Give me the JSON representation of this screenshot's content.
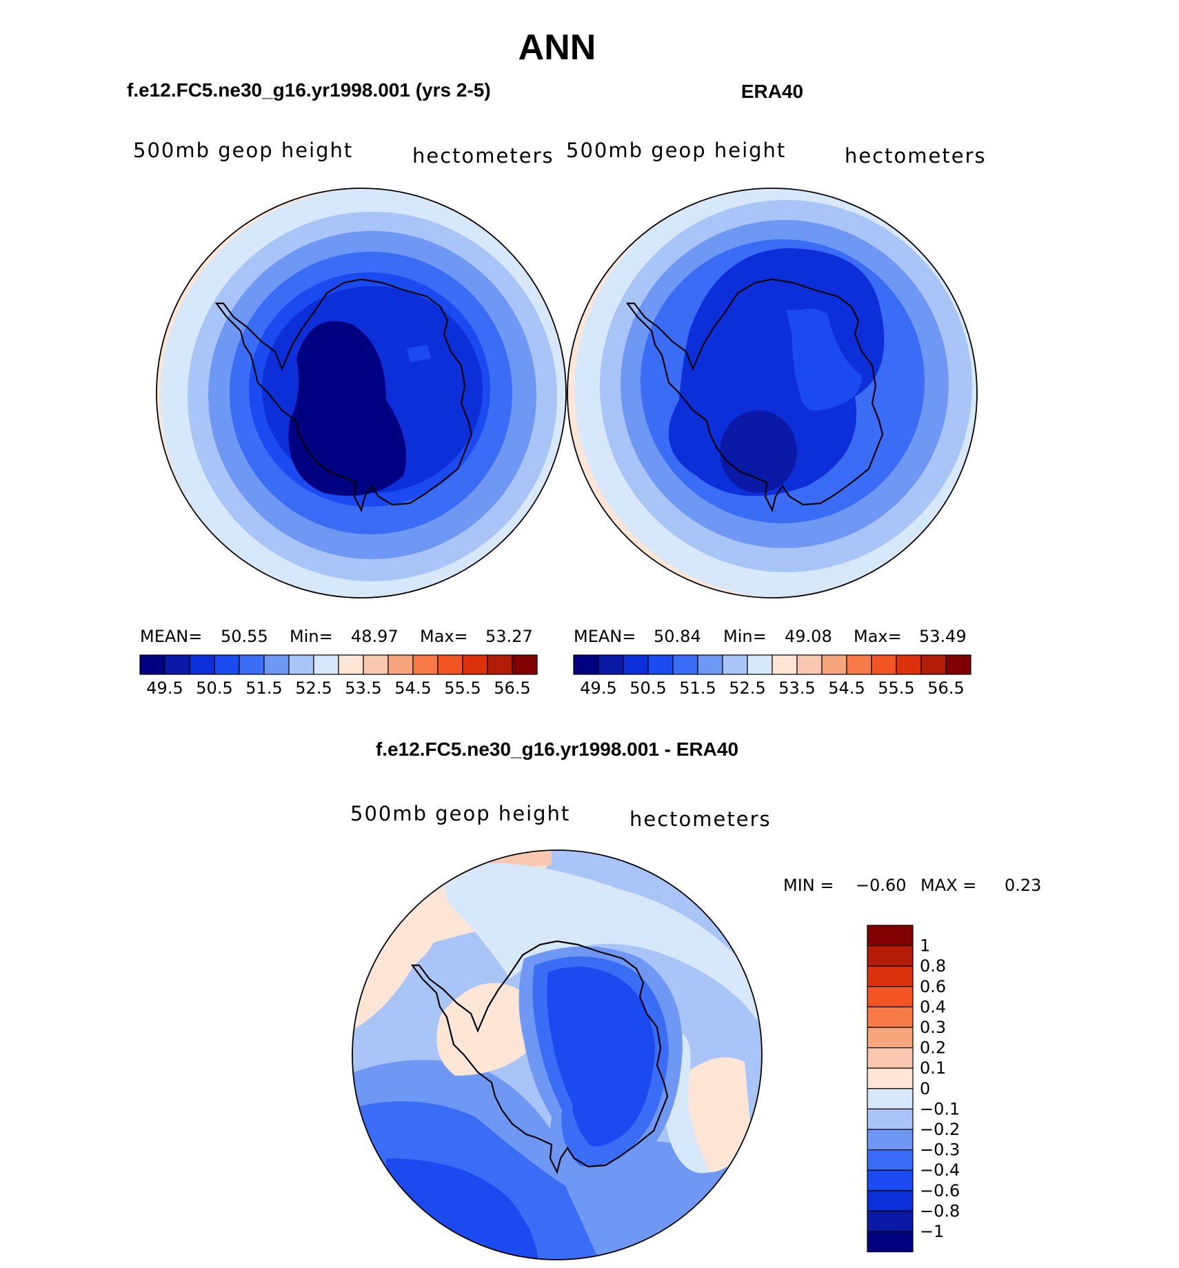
{
  "title": "ANN",
  "colors": {
    "blues": [
      "#000080",
      "#0a1aa6",
      "#0d2fd9",
      "#1a4af0",
      "#3b6cf5",
      "#6f98f5",
      "#a9c4f7",
      "#d8e8fb"
    ],
    "reds": [
      "#fde6d5",
      "#fac8b0",
      "#f7a57d",
      "#f57a47",
      "#f25523",
      "#db310c",
      "#b31c07",
      "#800000"
    ],
    "coast": "#000000"
  },
  "panels": [
    {
      "title": "f.e12.FC5.ne30_g16.yr1998.001 (yrs 2-5)",
      "left_label": "500mb geop height",
      "right_label": "hectometers",
      "stats": {
        "mean_label": "MEAN=",
        "mean": "50.55",
        "min_label": "Min=",
        "min": "48.97",
        "max_label": "Max=",
        "max": "53.27"
      }
    },
    {
      "title": "ERA40",
      "left_label": "500mb geop height",
      "right_label": "hectometers",
      "stats": {
        "mean_label": "MEAN=",
        "mean": "50.84",
        "min_label": "Min=",
        "min": "49.08",
        "max_label": "Max=",
        "max": "53.49"
      }
    }
  ],
  "colorbar_ticks": [
    "49.5",
    "50.5",
    "51.5",
    "52.5",
    "53.5",
    "54.5",
    "55.5",
    "56.5"
  ],
  "diff_panel": {
    "title": "f.e12.FC5.ne30_g16.yr1998.001 - ERA40",
    "left_label": "500mb geop height",
    "right_label": "hectometers",
    "min_label": "MIN =",
    "min": "−0.60",
    "max_label": "MAX =",
    "max": "0.23",
    "colorbar_labels": [
      "1",
      "0.8",
      "0.6",
      "0.4",
      "0.3",
      "0.2",
      "0.1",
      "0",
      "−0.1",
      "−0.2",
      "−0.3",
      "−0.4",
      "−0.6",
      "−0.8",
      "−1"
    ],
    "colorbar_colors": [
      "#800000",
      "#b31c07",
      "#db310c",
      "#f25523",
      "#f57a47",
      "#f7a57d",
      "#fac8b0",
      "#fde6d5",
      "#d8e8fb",
      "#a9c4f7",
      "#6f98f5",
      "#3b6cf5",
      "#1a4af0",
      "#0d2fd9",
      "#0a1aa6",
      "#000080"
    ]
  },
  "chart_data": [
    {
      "type": "heatmap",
      "title": "f.e12.FC5.ne30_g16.yr1998.001 (yrs 2-5)",
      "variable": "500mb geop height",
      "units": "hectometers",
      "projection": "south polar stereographic",
      "mean": 50.55,
      "min": 48.97,
      "max": 53.27,
      "contour_levels": [
        49.5,
        50,
        50.5,
        51,
        51.5,
        52,
        52.5,
        53,
        53.5,
        54,
        54.5,
        55,
        55.5,
        56,
        56.5
      ]
    },
    {
      "type": "heatmap",
      "title": "ERA40",
      "variable": "500mb geop height",
      "units": "hectometers",
      "projection": "south polar stereographic",
      "mean": 50.84,
      "min": 49.08,
      "max": 53.49,
      "contour_levels": [
        49.5,
        50,
        50.5,
        51,
        51.5,
        52,
        52.5,
        53,
        53.5,
        54,
        54.5,
        55,
        55.5,
        56,
        56.5
      ]
    },
    {
      "type": "heatmap",
      "title": "f.e12.FC5.ne30_g16.yr1998.001 - ERA40",
      "variable": "500mb geop height",
      "units": "hectometers",
      "projection": "south polar stereographic",
      "min": -0.6,
      "max": 0.23,
      "contour_levels": [
        -1,
        -0.8,
        -0.6,
        -0.4,
        -0.3,
        -0.2,
        -0.1,
        0,
        0.1,
        0.2,
        0.3,
        0.4,
        0.6,
        0.8,
        1
      ]
    }
  ]
}
